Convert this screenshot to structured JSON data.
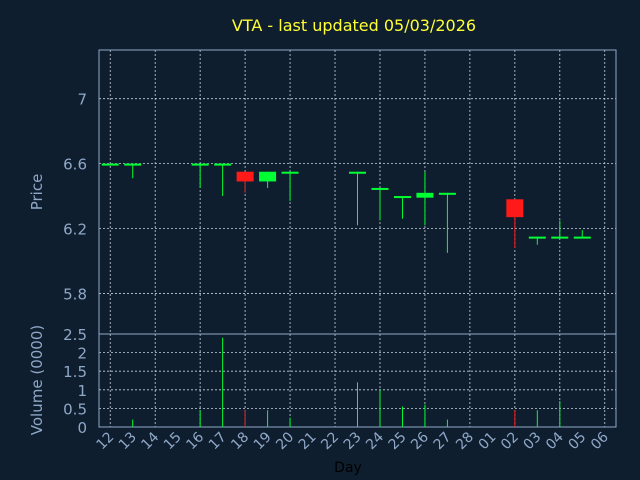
{
  "chart_data": {
    "type": "candlestick",
    "title": "VTA - last updated 05/03/2026",
    "ylabel": "Price",
    "volume_label": "Volume (0000)",
    "xlabel": "Day",
    "ylim": [
      5.55,
      7.3
    ],
    "yticks": [
      "5.8",
      "6.2",
      "6.6",
      "7"
    ],
    "volume_ylim": [
      0,
      2.5
    ],
    "volume_yticks": [
      "0",
      "0.5",
      "1",
      "1.5",
      "2",
      "2.5"
    ],
    "x_ticks": [
      "12",
      "13",
      "14",
      "15",
      "16",
      "17",
      "18",
      "19",
      "20",
      "21",
      "22",
      "23",
      "24",
      "25",
      "26",
      "27",
      "28",
      "01",
      "02",
      "03",
      "04",
      "05",
      "06"
    ],
    "colors": {
      "up": "#00ff33",
      "down": "#ff1a1a",
      "background": "#0f1e2e"
    },
    "candles": [
      {
        "day": "12",
        "open": 6.6,
        "high": 6.6,
        "low": 6.6,
        "close": 6.6,
        "volume": 0.0
      },
      {
        "day": "13",
        "open": 6.59,
        "high": 6.6,
        "low": 6.51,
        "close": 6.6,
        "volume": 0.2
      },
      {
        "day": "16",
        "open": 6.59,
        "high": 6.6,
        "low": 6.45,
        "close": 6.6,
        "volume": 0.45
      },
      {
        "day": "17",
        "open": 6.6,
        "high": 6.6,
        "low": 6.4,
        "close": 6.6,
        "volume": 2.4
      },
      {
        "day": "18",
        "open": 6.55,
        "high": 6.55,
        "low": 6.42,
        "close": 6.49,
        "volume": 0.45
      },
      {
        "day": "19",
        "open": 6.49,
        "high": 6.55,
        "low": 6.45,
        "close": 6.55,
        "volume": 0.45
      },
      {
        "day": "20",
        "open": 6.54,
        "high": 6.55,
        "low": 6.37,
        "close": 6.55,
        "volume": 0.25
      },
      {
        "day": "23",
        "open": 6.54,
        "high": 6.55,
        "low": 6.22,
        "close": 6.55,
        "volume": 1.2
      },
      {
        "day": "24",
        "open": 6.45,
        "high": 6.45,
        "low": 6.25,
        "close": 6.45,
        "volume": 1.0
      },
      {
        "day": "25",
        "open": 6.4,
        "high": 6.4,
        "low": 6.26,
        "close": 6.4,
        "volume": 0.55
      },
      {
        "day": "26",
        "open": 6.39,
        "high": 6.55,
        "low": 6.22,
        "close": 6.42,
        "volume": 0.6
      },
      {
        "day": "27",
        "open": 6.42,
        "high": 6.42,
        "low": 6.05,
        "close": 6.42,
        "volume": 0.2
      },
      {
        "day": "02",
        "open": 6.38,
        "high": 6.38,
        "low": 6.08,
        "close": 6.27,
        "volume": 0.45
      },
      {
        "day": "03",
        "open": 6.14,
        "high": 6.15,
        "low": 6.1,
        "close": 6.15,
        "volume": 0.45
      },
      {
        "day": "04",
        "open": 6.14,
        "high": 6.25,
        "low": 6.14,
        "close": 6.15,
        "volume": 0.7
      },
      {
        "day": "05",
        "open": 6.14,
        "high": 6.19,
        "low": 6.14,
        "close": 6.15,
        "volume": 0.0
      }
    ]
  }
}
